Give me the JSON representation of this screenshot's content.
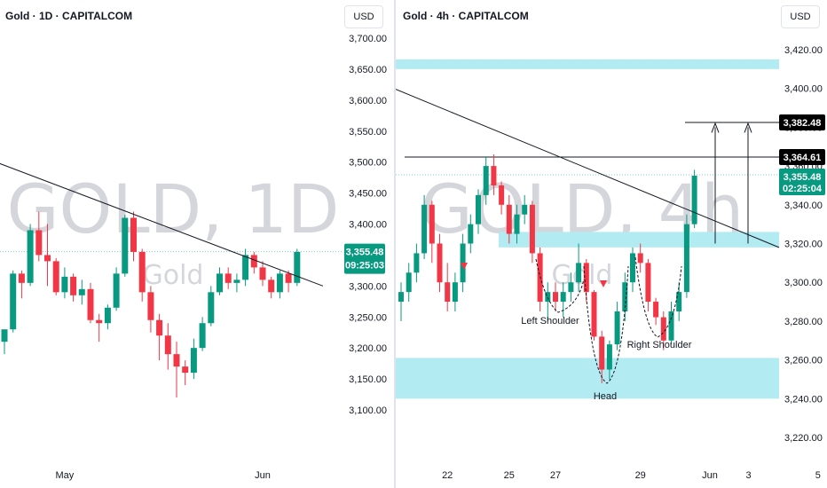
{
  "colors": {
    "up": "#089981",
    "down": "#f23645",
    "zone": "#b2ebf2",
    "line": "#131722",
    "tag_green": "#089981",
    "tag_black": "#000000"
  },
  "left": {
    "title": "Gold · 1D · CAPITALCOM",
    "currency": "USD",
    "watermark": "GOLD, 1D",
    "watermark_sub": "Gold",
    "price_tag": "3,355.48",
    "countdown": "09:25:03",
    "x_labels": [
      {
        "text": "May",
        "at": 7
      },
      {
        "text": "Jun",
        "at": 30
      }
    ]
  },
  "right": {
    "title": "Gold · 4h · CAPITALCOM",
    "currency": "USD",
    "watermark": "GOLD, 4h",
    "watermark_sub": "Gold",
    "price_tag": "3,355.48",
    "countdown": "02:25:04",
    "level_tag_1": "3,364.61",
    "level_tag_2": "3,382.48",
    "annotations": {
      "left_shoulder": "Left Shoulder",
      "head": "Head",
      "right_shoulder": "Right Shoulder"
    },
    "x_labels": [
      {
        "text": "22",
        "at": 6
      },
      {
        "text": "25",
        "at": 14
      },
      {
        "text": "27",
        "at": 20
      },
      {
        "text": "29",
        "at": 31
      },
      {
        "text": "Jun",
        "at": 40
      },
      {
        "text": "3",
        "at": 45
      },
      {
        "text": "5",
        "at": 54
      }
    ]
  },
  "mid_axis": {
    "ticks": [
      "3,700.00",
      "3,650.00",
      "3,600.00",
      "3,550.00",
      "3,500.00",
      "3,450.00",
      "3,400.00",
      "3,350.00",
      "3,300.00",
      "3,250.00",
      "3,200.00",
      "3,150.00",
      "3,100.00"
    ],
    "values": [
      3700,
      3650,
      3600,
      3550,
      3500,
      3450,
      3400,
      3350,
      3300,
      3250,
      3200,
      3150,
      3100
    ]
  },
  "right_axis": {
    "ticks": [
      "3,420.00",
      "3,400.00",
      "3,380.00",
      "3,360.00",
      "3,340.00",
      "3,320.00",
      "3,300.00",
      "3,280.00",
      "3,260.00",
      "3,240.00",
      "3,220.00"
    ],
    "values": [
      3420,
      3400,
      3380,
      3360,
      3340,
      3320,
      3300,
      3280,
      3260,
      3240,
      3220
    ]
  },
  "chart_data": [
    {
      "type": "candlestick",
      "title": "Gold · 1D · CAPITALCOM",
      "ylim": [
        3085,
        3725
      ],
      "trendline": [
        [
          -1,
          3500
        ],
        [
          37,
          3300
        ]
      ],
      "candles": [
        [
          3210,
          3230,
          3190,
          3230
        ],
        [
          3230,
          3325,
          3225,
          3320
        ],
        [
          3320,
          3325,
          3280,
          3305
        ],
        [
          3305,
          3400,
          3300,
          3390
        ],
        [
          3390,
          3420,
          3340,
          3350
        ],
        [
          3350,
          3400,
          3300,
          3340
        ],
        [
          3340,
          3345,
          3285,
          3290
        ],
        [
          3290,
          3330,
          3280,
          3315
        ],
        [
          3315,
          3320,
          3275,
          3285
        ],
        [
          3285,
          3310,
          3270,
          3295
        ],
        [
          3295,
          3305,
          3240,
          3245
        ],
        [
          3245,
          3255,
          3210,
          3240
        ],
        [
          3240,
          3270,
          3230,
          3265
        ],
        [
          3265,
          3330,
          3260,
          3320
        ],
        [
          3320,
          3415,
          3315,
          3410
        ],
        [
          3410,
          3420,
          3340,
          3355
        ],
        [
          3355,
          3360,
          3275,
          3290
        ],
        [
          3290,
          3300,
          3225,
          3245
        ],
        [
          3245,
          3255,
          3180,
          3220
        ],
        [
          3220,
          3240,
          3165,
          3190
        ],
        [
          3190,
          3210,
          3120,
          3170
        ],
        [
          3170,
          3180,
          3140,
          3160
        ],
        [
          3160,
          3215,
          3150,
          3200
        ],
        [
          3200,
          3250,
          3195,
          3240
        ],
        [
          3240,
          3300,
          3235,
          3290
        ],
        [
          3290,
          3330,
          3285,
          3320
        ],
        [
          3320,
          3330,
          3295,
          3305
        ],
        [
          3305,
          3320,
          3290,
          3310
        ],
        [
          3310,
          3360,
          3300,
          3350
        ],
        [
          3350,
          3355,
          3320,
          3330
        ],
        [
          3330,
          3340,
          3300,
          3310
        ],
        [
          3310,
          3315,
          3280,
          3290
        ],
        [
          3290,
          3325,
          3280,
          3320
        ],
        [
          3320,
          3325,
          3290,
          3305
        ],
        [
          3305,
          3360,
          3300,
          3355
        ]
      ]
    },
    {
      "type": "candlestick",
      "title": "Gold · 4h · CAPITALCOM",
      "ylim": [
        3210,
        3430
      ],
      "zones": [
        [
          3410,
          3415
        ],
        [
          3318,
          3326
        ],
        [
          3240,
          3261
        ]
      ],
      "levels": [
        3364.61,
        3382.48
      ],
      "trendline": [
        [
          -1,
          3395
        ],
        [
          56,
          3318
        ]
      ],
      "candles": [
        [
          3290,
          3300,
          3280,
          3295
        ],
        [
          3295,
          3310,
          3290,
          3305
        ],
        [
          3305,
          3320,
          3300,
          3315
        ],
        [
          3315,
          3345,
          3312,
          3340
        ],
        [
          3340,
          3342,
          3310,
          3320
        ],
        [
          3320,
          3325,
          3295,
          3300
        ],
        [
          3300,
          3310,
          3285,
          3290
        ],
        [
          3290,
          3305,
          3285,
          3300
        ],
        [
          3300,
          3325,
          3295,
          3320
        ],
        [
          3320,
          3335,
          3315,
          3330
        ],
        [
          3330,
          3348,
          3325,
          3345
        ],
        [
          3345,
          3365,
          3340,
          3360
        ],
        [
          3360,
          3366,
          3345,
          3350
        ],
        [
          3350,
          3352,
          3335,
          3340
        ],
        [
          3340,
          3345,
          3320,
          3325
        ],
        [
          3325,
          3340,
          3320,
          3335
        ],
        [
          3335,
          3345,
          3330,
          3340
        ],
        [
          3340,
          3342,
          3310,
          3315
        ],
        [
          3315,
          3318,
          3285,
          3290
        ],
        [
          3290,
          3300,
          3280,
          3295
        ],
        [
          3295,
          3300,
          3285,
          3290
        ],
        [
          3290,
          3300,
          3282,
          3295
        ],
        [
          3295,
          3305,
          3290,
          3300
        ],
        [
          3300,
          3320,
          3295,
          3310
        ],
        [
          3310,
          3312,
          3290,
          3295
        ],
        [
          3295,
          3296,
          3270,
          3272
        ],
        [
          3272,
          3275,
          3248,
          3255
        ],
        [
          3255,
          3270,
          3250,
          3268
        ],
        [
          3268,
          3290,
          3265,
          3285
        ],
        [
          3285,
          3305,
          3280,
          3300
        ],
        [
          3300,
          3318,
          3295,
          3315
        ],
        [
          3315,
          3320,
          3305,
          3310
        ],
        [
          3310,
          3312,
          3285,
          3290
        ],
        [
          3290,
          3292,
          3278,
          3282
        ],
        [
          3282,
          3285,
          3265,
          3270
        ],
        [
          3270,
          3290,
          3268,
          3285
        ],
        [
          3285,
          3300,
          3280,
          3295
        ],
        [
          3295,
          3335,
          3292,
          3330
        ],
        [
          3330,
          3358,
          3328,
          3355
        ]
      ]
    }
  ]
}
